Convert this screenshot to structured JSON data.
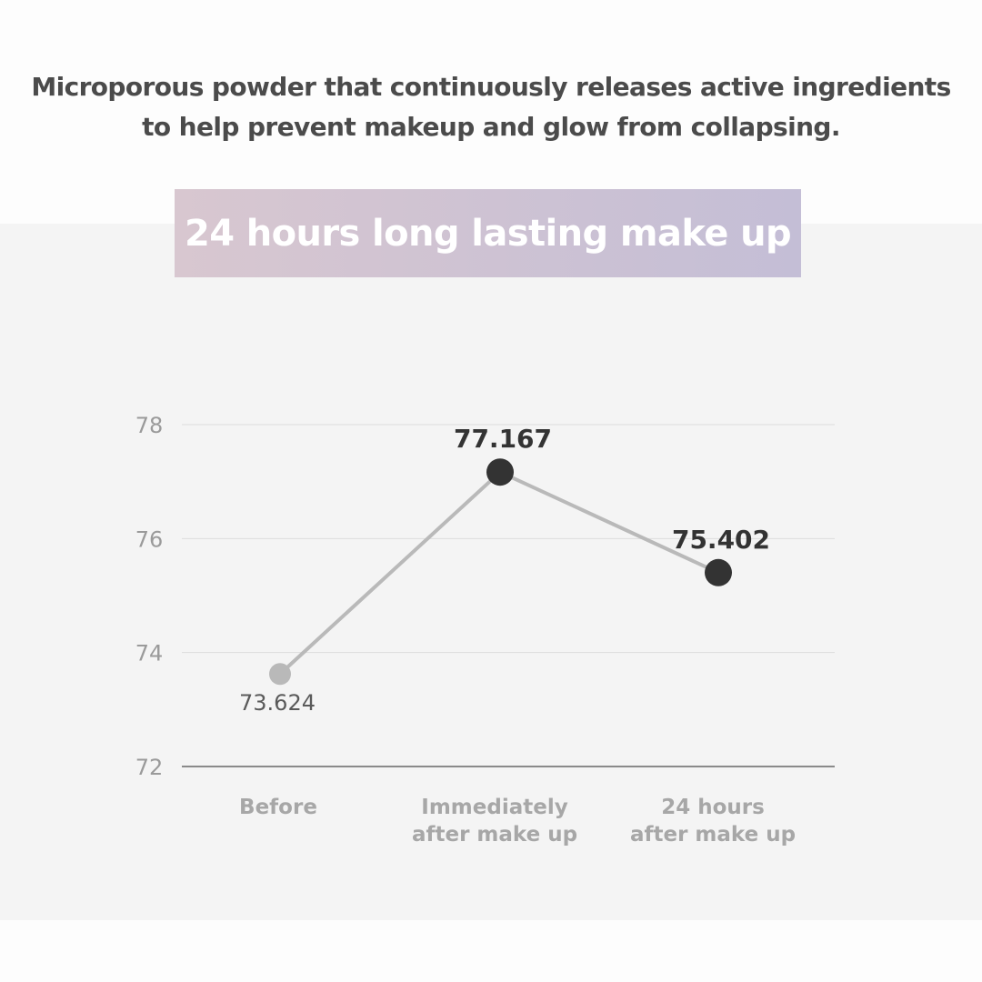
{
  "intro": {
    "line1": "Microporous powder that continuously releases active ingredients",
    "line2": "to help prevent makeup and glow from collapsing."
  },
  "banner": {
    "title": "24 hours long lasting make up"
  },
  "colors": {
    "page_background": "#fdfdfd",
    "panel_background": "#f4f4f4",
    "banner_gradient_start": "#d8c7d0",
    "banner_gradient_end": "#c4bed6",
    "line": "#b9b9b9",
    "point_muted": "#b9b9b9",
    "point_dark": "#333333",
    "grid": "#dcdcdc",
    "baseline": "#666666",
    "tick_label": "#9a9a9a",
    "category_label": "#a7a7a7",
    "value_label_dark": "#333333",
    "value_label_muted": "#5a5a5a"
  },
  "chart_data": {
    "type": "line",
    "categories": [
      [
        "Before"
      ],
      [
        "Immediately",
        "after make up"
      ],
      [
        "24 hours",
        "after make up"
      ]
    ],
    "values": [
      73.624,
      77.167,
      75.402
    ],
    "value_labels": [
      "73.624",
      "77.167",
      "75.402"
    ],
    "highlighted": [
      false,
      true,
      true
    ],
    "yticks": [
      72,
      74,
      76,
      78
    ],
    "ylim": [
      72,
      78
    ],
    "grid": true,
    "legend": "none"
  }
}
